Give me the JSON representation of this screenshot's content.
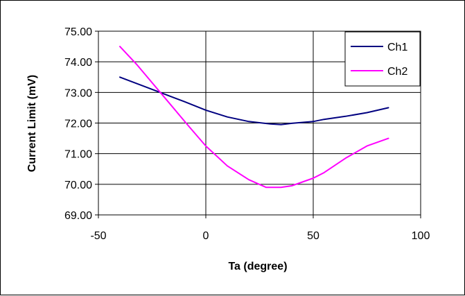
{
  "chart_data": {
    "type": "line",
    "title": "",
    "xlabel": "Ta (degree)",
    "ylabel": "Current Limit (mV)",
    "xlim": [
      -50,
      100
    ],
    "ylim": [
      69,
      75
    ],
    "x_ticks": [
      -50,
      0,
      50,
      100
    ],
    "x_tick_labels": [
      "-50",
      "0",
      "50",
      "100"
    ],
    "y_ticks": [
      69,
      70,
      71,
      72,
      73,
      74,
      75
    ],
    "y_tick_labels": [
      "69.00",
      "70.00",
      "71.00",
      "72.00",
      "73.00",
      "74.00",
      "75.00"
    ],
    "grid": "vertical and horizontal major gridlines",
    "legend_position": "top-right",
    "series": [
      {
        "name": "Ch1",
        "color": "#000080",
        "x": [
          -40,
          -25,
          -10,
          0,
          10,
          20,
          30,
          35,
          40,
          50,
          55,
          65,
          75,
          85
        ],
        "y": [
          73.5,
          73.1,
          72.7,
          72.42,
          72.2,
          72.05,
          71.97,
          71.95,
          71.99,
          72.05,
          72.12,
          72.22,
          72.34,
          72.5
        ]
      },
      {
        "name": "Ch2",
        "color": "#FF00FF",
        "x": [
          -40,
          -32,
          -20,
          -8,
          0,
          10,
          20,
          28,
          35,
          40,
          50,
          55,
          65,
          75,
          85
        ],
        "y": [
          74.5,
          73.9,
          72.9,
          71.9,
          71.25,
          70.6,
          70.15,
          69.9,
          69.9,
          69.95,
          70.2,
          70.38,
          70.85,
          71.25,
          71.5
        ]
      }
    ]
  }
}
